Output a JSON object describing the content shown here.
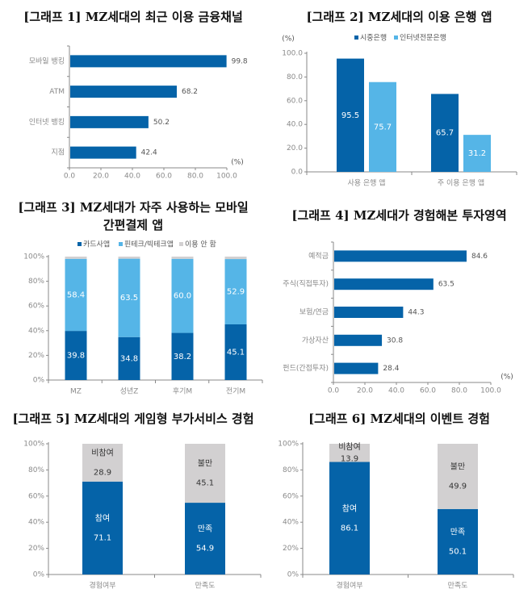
{
  "colors": {
    "dark_blue": "#0563a8",
    "light_blue": "#55b5e7",
    "gray": "#d2d0d1",
    "axis": "#888888",
    "tick_text": "#8a8a8a",
    "label_text": "#555555"
  },
  "chart_data": [
    {
      "type": "bar",
      "orientation": "horizontal",
      "title": "[그래프 1] MZ세대의 최근 이용 금융채널",
      "categories": [
        "모바일 뱅킹",
        "ATM",
        "인터넷 뱅킹",
        "지점"
      ],
      "values": [
        99.8,
        68.2,
        50.2,
        42.4
      ],
      "labels": [
        "99.8",
        "68.2",
        "50.2",
        "42.4"
      ],
      "xlim": [
        0,
        100
      ],
      "xticks": [
        "0.0",
        "20.0",
        "40.0",
        "60.0",
        "80.0",
        "100.0"
      ],
      "unit": "(%)",
      "grid": false
    },
    {
      "type": "bar",
      "orientation": "vertical",
      "grouped": true,
      "title": "[그래프 2] MZ세대의 이용 은행 앱",
      "categories": [
        "사용 은행 앱",
        "주 이용 은행 앱"
      ],
      "series": [
        {
          "name": "시중은행",
          "values": [
            95.5,
            65.7
          ],
          "labels": [
            "95.5",
            "65.7"
          ]
        },
        {
          "name": "인터넷전문은행",
          "values": [
            75.7,
            31.2
          ],
          "labels": [
            "75.7",
            "31.2"
          ]
        }
      ],
      "ylim": [
        0,
        100
      ],
      "yticks": [
        "0.0",
        "20.0",
        "40.0",
        "60.0",
        "80.0",
        "100.0"
      ],
      "unit": "(%)",
      "legend": "top",
      "grid": false
    },
    {
      "type": "bar",
      "orientation": "vertical",
      "stacked": true,
      "title": "[그래프 3] MZ세대가 자주 사용하는 모바일 간편결제 앱",
      "title_lines": [
        "[그래프 3] MZ세대가 자주 사용하는 모바일",
        "간편결제 앱"
      ],
      "categories": [
        "MZ",
        "성년Z",
        "후기M",
        "전기M"
      ],
      "series": [
        {
          "name": "카드사앱",
          "values": [
            39.8,
            34.8,
            38.2,
            45.1
          ],
          "labels": [
            "39.8",
            "34.8",
            "38.2",
            "45.1"
          ]
        },
        {
          "name": "핀테크/빅테크앱",
          "values": [
            58.4,
            63.5,
            60.0,
            52.9
          ],
          "labels": [
            "58.4",
            "63.5",
            "60.0",
            "52.9"
          ]
        },
        {
          "name": "이용 안 함",
          "values": [
            1.8,
            1.7,
            1.8,
            2.0
          ]
        }
      ],
      "ylim": [
        0,
        100
      ],
      "yticks": [
        "0%",
        "20%",
        "40%",
        "60%",
        "80%",
        "100%"
      ],
      "legend": "top",
      "grid": false
    },
    {
      "type": "bar",
      "orientation": "horizontal",
      "title": "[그래프 4] MZ세대가 경험해본 투자영역",
      "categories": [
        "예적금",
        "주식(직접투자)",
        "보험/연금",
        "가상자산",
        "펀드(간접투자)"
      ],
      "values": [
        84.6,
        63.5,
        44.3,
        30.8,
        28.4
      ],
      "labels": [
        "84.6",
        "63.5",
        "44.3",
        "30.8",
        "28.4"
      ],
      "xlim": [
        0,
        100
      ],
      "xticks": [
        "0.0",
        "20.0",
        "40.0",
        "60.0",
        "80.0",
        "100.0"
      ],
      "unit": "(%)",
      "grid": false
    },
    {
      "type": "bar",
      "orientation": "vertical",
      "stacked": true,
      "title": "[그래프 5] MZ세대의 게임형 부가서비스 경험",
      "categories": [
        "경험여부",
        "만족도"
      ],
      "bars": [
        {
          "segments": [
            {
              "name": "참여",
              "value": 71.1,
              "label": "71.1"
            },
            {
              "name": "비참여",
              "value": 28.9,
              "label": "28.9"
            }
          ]
        },
        {
          "segments": [
            {
              "name": "만족",
              "value": 54.9,
              "label": "54.9"
            },
            {
              "name": "불만",
              "value": 45.1,
              "label": "45.1"
            }
          ]
        }
      ],
      "ylim": [
        0,
        100
      ],
      "yticks": [
        "0%",
        "20%",
        "40%",
        "60%",
        "80%",
        "100%"
      ],
      "grid": false
    },
    {
      "type": "bar",
      "orientation": "vertical",
      "stacked": true,
      "title": "[그래프 6] MZ세대의 이벤트 경험",
      "categories": [
        "경험여부",
        "만족도"
      ],
      "bars": [
        {
          "segments": [
            {
              "name": "참여",
              "value": 86.1,
              "label": "86.1"
            },
            {
              "name": "비참여",
              "value": 13.9,
              "label": "13.9"
            }
          ]
        },
        {
          "segments": [
            {
              "name": "만족",
              "value": 50.1,
              "label": "50.1"
            },
            {
              "name": "불만",
              "value": 49.9,
              "label": "49.9"
            }
          ]
        }
      ],
      "ylim": [
        0,
        100
      ],
      "yticks": [
        "0%",
        "20%",
        "40%",
        "60%",
        "80%",
        "100%"
      ],
      "grid": false
    }
  ]
}
